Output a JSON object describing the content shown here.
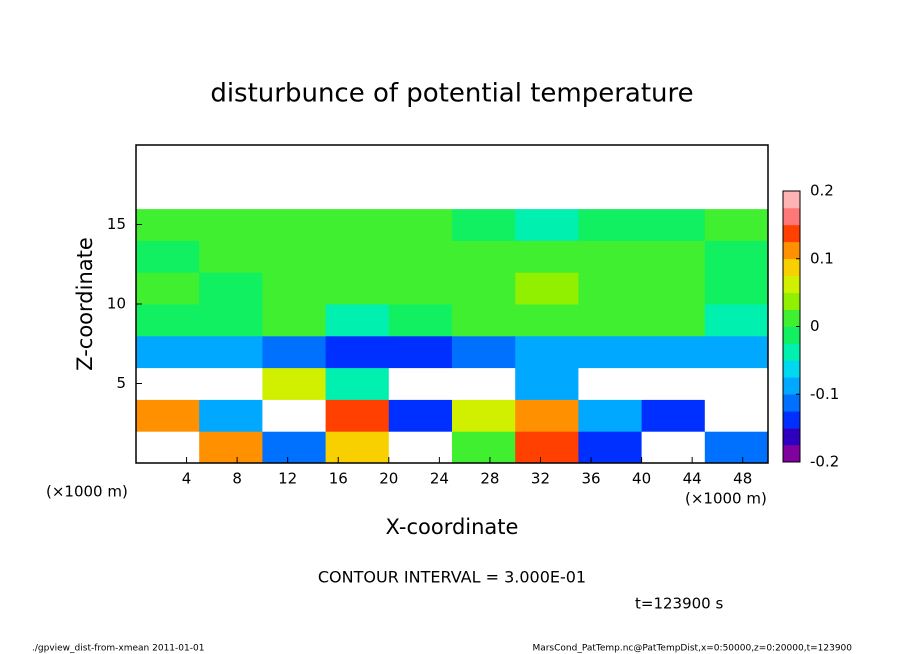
{
  "chart_data": {
    "type": "heatmap",
    "title": "disturbunce of potential temperature",
    "x_label": "X-coordinate",
    "y_label": "Z-coordinate",
    "x_unit": "(×1000 m)",
    "y_unit": "(×1000 m)",
    "contour_note": "CONTOUR INTERVAL = 3.000E-01",
    "time_note": "t=123900 s",
    "footer_left": "./gpview_dist-from-xmean  2011-01-01",
    "footer_right": "MarsCond_PatTemp.nc@PatTempDist,x=0:50000,z=0:20000,t=123900",
    "xlim": [
      0,
      50
    ],
    "ylim": [
      0,
      20
    ],
    "xticks": [
      4,
      8,
      12,
      16,
      20,
      24,
      28,
      32,
      36,
      40,
      44,
      48
    ],
    "yticks": [
      5,
      10,
      15
    ],
    "xbins": [
      0,
      5,
      10,
      15,
      20,
      25,
      30,
      35,
      40,
      45,
      50
    ],
    "ybins": [
      0,
      2,
      4,
      6,
      8,
      10,
      12,
      14,
      16,
      18,
      20
    ],
    "values": [
      [
        0.3,
        0.12,
        -0.12,
        0.08,
        0.3,
        0.0,
        0.15,
        -0.15,
        0.3,
        -0.12
      ],
      [
        0.1,
        -0.1,
        0.3,
        0.15,
        -0.15,
        0.05,
        0.12,
        -0.1,
        -0.15,
        0.3
      ],
      [
        0.3,
        0.3,
        0.05,
        -0.05,
        0.3,
        0.3,
        -0.1,
        0.3,
        0.3,
        0.3
      ],
      [
        -0.08,
        -0.08,
        -0.12,
        -0.14,
        -0.15,
        -0.12,
        -0.08,
        -0.08,
        -0.08,
        -0.08
      ],
      [
        -0.02,
        -0.01,
        0,
        -0.03,
        -0.02,
        0.01,
        0.02,
        0.01,
        0,
        -0.03
      ],
      [
        0.01,
        -0.01,
        0.01,
        0,
        0.01,
        0.02,
        0.04,
        0.02,
        0.01,
        -0.01
      ],
      [
        -0.02,
        0,
        0.01,
        0,
        0,
        0.01,
        0.02,
        0.01,
        0,
        -0.02
      ],
      [
        0.01,
        0.01,
        0.01,
        0.01,
        0.01,
        -0.02,
        -0.03,
        -0.02,
        -0.01,
        0
      ],
      [
        0.3,
        0.3,
        0.3,
        0.3,
        0.3,
        0.3,
        0.3,
        0.3,
        0.3,
        0.3
      ],
      [
        0.3,
        0.3,
        0.3,
        0.3,
        0.3,
        0.3,
        0.3,
        0.3,
        0.3,
        0.3
      ]
    ],
    "clim": [
      -0.2,
      0.2
    ],
    "cticks": [
      -0.2,
      -0.1,
      0,
      0.1,
      0.2
    ],
    "colors": [
      "#8000a0",
      "#3000c0",
      "#0030ff",
      "#0070ff",
      "#00a8ff",
      "#00d8f0",
      "#00f0b0",
      "#10f060",
      "#40f030",
      "#90f000",
      "#d0f000",
      "#f8d000",
      "#ff9000",
      "#ff4000",
      "#ff7878",
      "#ffb4b4"
    ],
    "out_of_range_color": "#ffffff"
  }
}
